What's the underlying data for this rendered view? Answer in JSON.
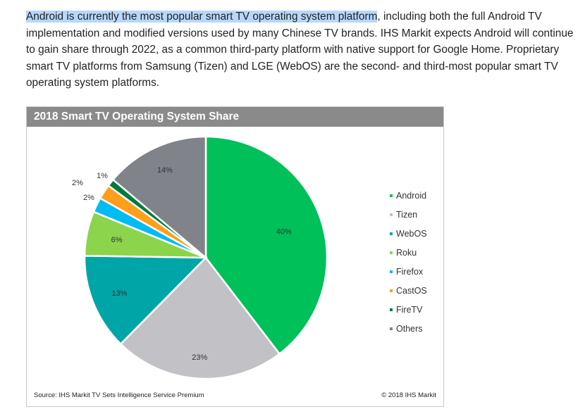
{
  "article": {
    "highlight": "Android is currently the most popular smart TV operating system platform",
    "rest": ", including both the full Android TV implementation and modified versions used by many Chinese TV brands. IHS Markit expects Android will continue to gain share through 2022, as a common third-party platform with native support for Google Home. Proprietary smart TV platforms from Samsung (Tizen) and LGE (WebOS) are the second- and third-most popular smart TV operating system platforms."
  },
  "chart_data": {
    "type": "pie",
    "title": "2018 Smart TV Operating System Share",
    "categories": [
      "Android",
      "Tizen",
      "WebOS",
      "Roku",
      "Firefox",
      "CastOS",
      "FireTV",
      "Others"
    ],
    "values": [
      40,
      23,
      13,
      6,
      2,
      2,
      1,
      14
    ],
    "labels": [
      "40%",
      "23%",
      "13%",
      "6%",
      "2%",
      "2%",
      "1%",
      "14%"
    ],
    "colors": [
      "#00c05a",
      "#c2c2c6",
      "#00a5a8",
      "#8bd44b",
      "#00bcf2",
      "#ff9e1b",
      "#007a3d",
      "#808389"
    ],
    "legend_position": "right",
    "source": "Source: IHS Markit TV Sets Intelligence Service Premium",
    "copyright": "© 2018 IHS Markit"
  }
}
